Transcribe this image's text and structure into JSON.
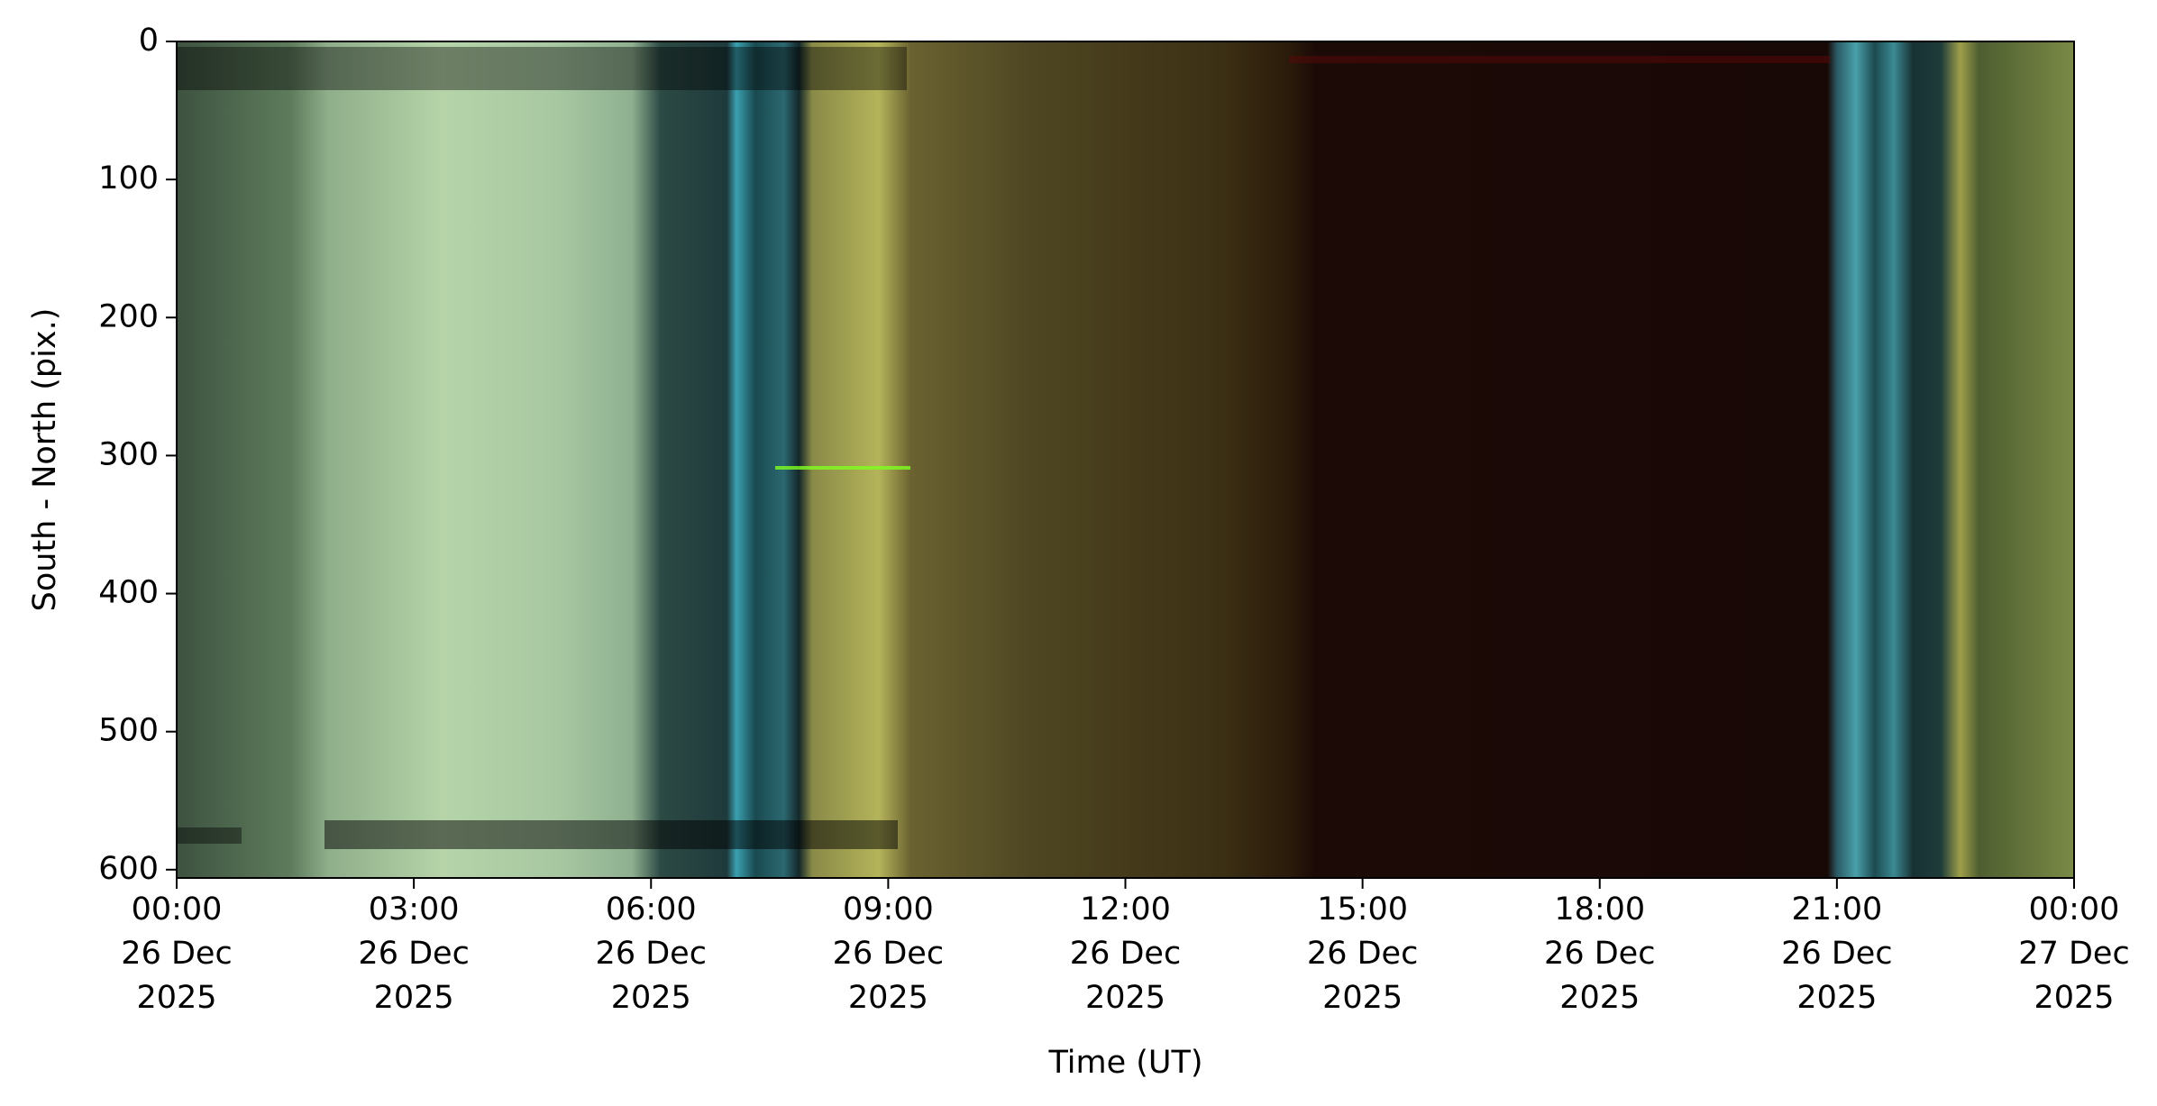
{
  "chart_data": {
    "type": "image",
    "xlabel": "Time (UT)",
    "ylabel": "South - North (pix.)",
    "xlim": [
      "2025-12-26T00:00",
      "2025-12-27T00:00"
    ],
    "xticks": [
      {
        "value": "2025-12-26T00:00",
        "label": "00:00\n26 Dec\n2025"
      },
      {
        "value": "2025-12-26T03:00",
        "label": "03:00\n26 Dec\n2025"
      },
      {
        "value": "2025-12-26T06:00",
        "label": "06:00\n26 Dec\n2025"
      },
      {
        "value": "2025-12-26T09:00",
        "label": "09:00\n26 Dec\n2025"
      },
      {
        "value": "2025-12-26T12:00",
        "label": "12:00\n26 Dec\n2025"
      },
      {
        "value": "2025-12-26T15:00",
        "label": "15:00\n26 Dec\n2025"
      },
      {
        "value": "2025-12-26T18:00",
        "label": "18:00\n26 Dec\n2025"
      },
      {
        "value": "2025-12-26T21:00",
        "label": "21:00\n26 Dec\n2025"
      },
      {
        "value": "2025-12-27T00:00",
        "label": "00:00\n27 Dec\n2025"
      }
    ],
    "ylim": [
      0,
      606
    ],
    "y_inverted": true,
    "yticks": [
      0,
      100,
      200,
      300,
      400,
      500,
      600
    ]
  }
}
